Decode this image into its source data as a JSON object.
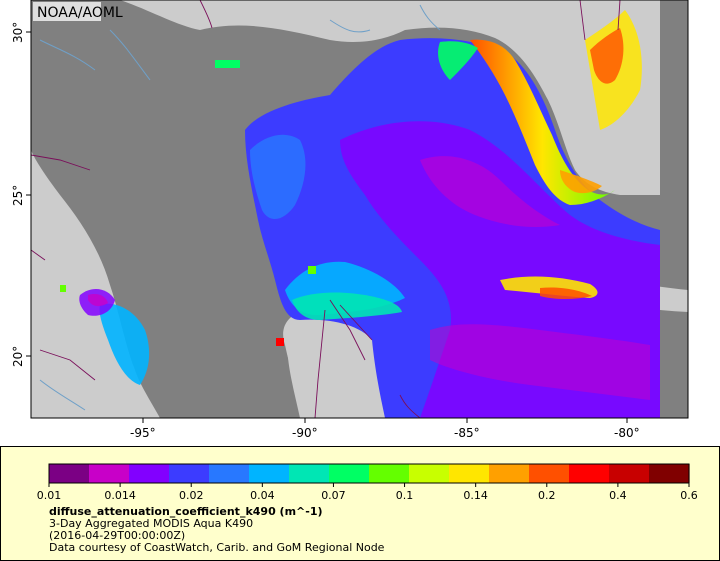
{
  "map": {
    "credit_label": "NOAA/AOML",
    "lat_ticks": [
      "30°",
      "25°",
      "20°"
    ],
    "lon_ticks": [
      "-95°",
      "-90°",
      "-85°",
      "-80°"
    ],
    "colors": {
      "land": "#cccccc",
      "nodata_ocean": "#808080",
      "boundaries": "#7a0f5a",
      "rivers": "#6fa0c8"
    }
  },
  "legend": {
    "tick_labels": [
      "0.01",
      "0.014",
      "0.02",
      "0.04",
      "0.07",
      "0.1",
      "0.14",
      "0.2",
      "0.4",
      "0.6"
    ],
    "variable": "diffuse_attenuation_coefficient_k490 (m^-1)",
    "dataset": "3-Day Aggregated MODIS Aqua K490",
    "time": "(2016-04-29T00:00:00Z)",
    "credit": "Data courtesy of CoastWatch, Carib. and GoM Regional Node",
    "scale": "log",
    "colormap": [
      "#7b0084",
      "#c800c8",
      "#8200ff",
      "#3c3cff",
      "#2878ff",
      "#00b4ff",
      "#00e6b4",
      "#00ff64",
      "#64ff00",
      "#c8ff00",
      "#ffe600",
      "#ffa000",
      "#ff5000",
      "#ff0000",
      "#c80000",
      "#800000"
    ]
  }
}
